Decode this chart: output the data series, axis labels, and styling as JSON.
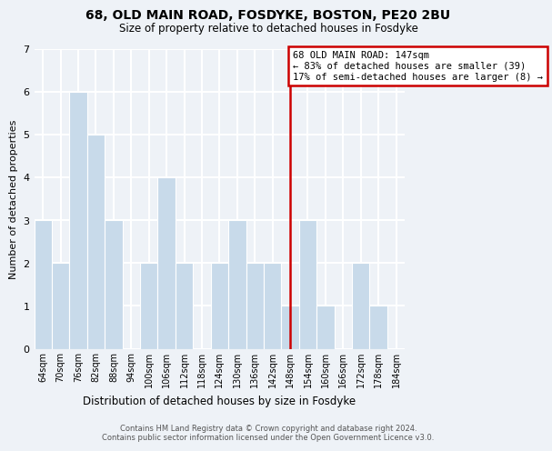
{
  "title": "68, OLD MAIN ROAD, FOSDYKE, BOSTON, PE20 2BU",
  "subtitle": "Size of property relative to detached houses in Fosdyke",
  "xlabel": "Distribution of detached houses by size in Fosdyke",
  "ylabel": "Number of detached properties",
  "bin_centers": [
    64,
    70,
    76,
    82,
    88,
    94,
    100,
    106,
    112,
    118,
    124,
    130,
    136,
    142,
    148,
    154,
    160,
    166,
    172,
    178,
    184
  ],
  "bin_labels": [
    "64sqm",
    "70sqm",
    "76sqm",
    "82sqm",
    "88sqm",
    "94sqm",
    "100sqm",
    "106sqm",
    "112sqm",
    "118sqm",
    "124sqm",
    "130sqm",
    "136sqm",
    "142sqm",
    "148sqm",
    "154sqm",
    "160sqm",
    "166sqm",
    "172sqm",
    "178sqm",
    "184sqm"
  ],
  "counts": [
    3,
    2,
    6,
    5,
    3,
    0,
    2,
    4,
    2,
    0,
    2,
    3,
    2,
    2,
    1,
    3,
    1,
    0,
    2,
    1,
    0
  ],
  "bar_color": "#c8daea",
  "bar_edge_color": "#ffffff",
  "bg_color": "#eef2f7",
  "grid_color": "#ffffff",
  "property_line_x": 148,
  "property_line_color": "#cc0000",
  "annotation_title": "68 OLD MAIN ROAD: 147sqm",
  "annotation_line1": "← 83% of detached houses are smaller (39)",
  "annotation_line2": "17% of semi-detached houses are larger (8) →",
  "annotation_box_color": "#cc0000",
  "footer_line1": "Contains HM Land Registry data © Crown copyright and database right 2024.",
  "footer_line2": "Contains public sector information licensed under the Open Government Licence v3.0.",
  "ylim": [
    0,
    7
  ],
  "yticks": [
    0,
    1,
    2,
    3,
    4,
    5,
    6,
    7
  ]
}
